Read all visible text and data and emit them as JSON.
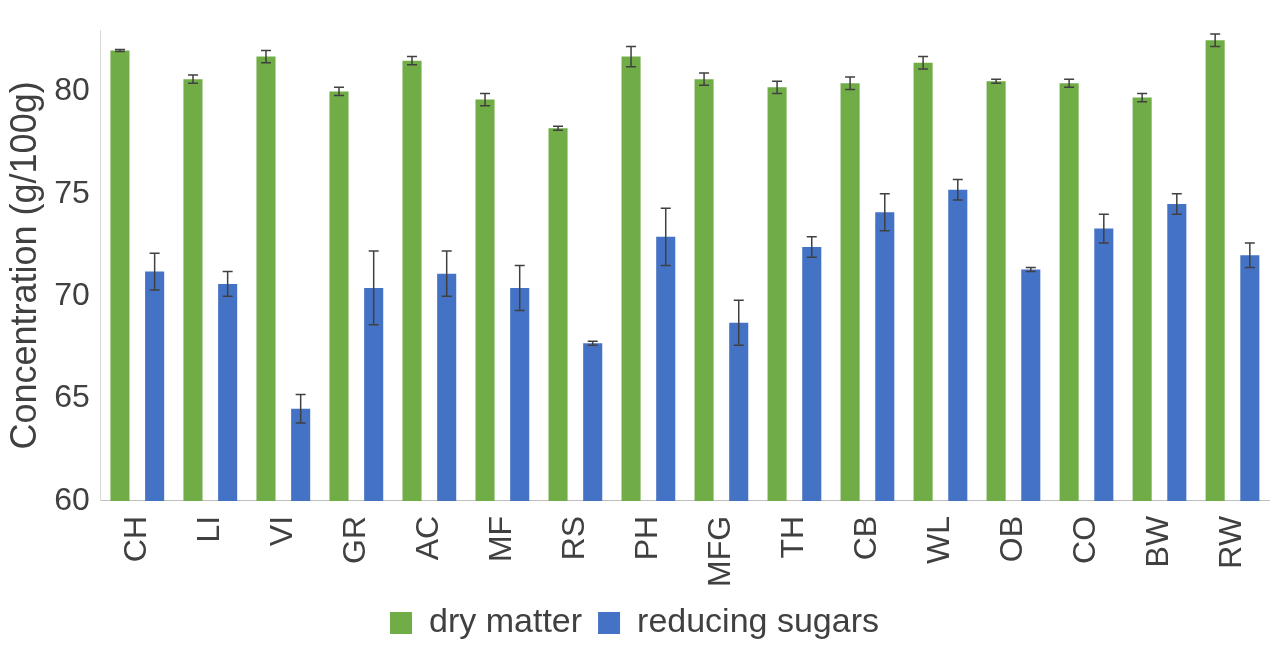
{
  "chart_data": {
    "type": "bar",
    "ylabel": "Concentration (g/100g)",
    "categories": [
      "CH",
      "LI",
      "VI",
      "GR",
      "AC",
      "MF",
      "RS",
      "PH",
      "MFG",
      "TH",
      "CB",
      "WL",
      "OB",
      "CO",
      "BW",
      "RW"
    ],
    "series": [
      {
        "name": "dry matter",
        "color": "#70ad47",
        "values": [
          82.0,
          80.6,
          81.7,
          80.0,
          81.5,
          79.6,
          78.2,
          81.7,
          80.6,
          80.2,
          80.4,
          81.4,
          80.5,
          80.4,
          79.7,
          82.5
        ],
        "errors": [
          0.05,
          0.2,
          0.3,
          0.2,
          0.2,
          0.3,
          0.1,
          0.5,
          0.3,
          0.3,
          0.3,
          0.3,
          0.1,
          0.2,
          0.2,
          0.3
        ]
      },
      {
        "name": "reducing sugars",
        "color": "#4472c4",
        "values": [
          71.2,
          70.6,
          64.5,
          70.4,
          71.1,
          70.4,
          67.7,
          72.9,
          68.7,
          72.4,
          74.1,
          75.2,
          71.3,
          73.3,
          74.5,
          72.0
        ],
        "errors": [
          0.9,
          0.6,
          0.7,
          1.8,
          1.1,
          1.1,
          0.1,
          1.4,
          1.1,
          0.5,
          0.9,
          0.5,
          0.1,
          0.7,
          0.5,
          0.6
        ]
      }
    ],
    "ylim": [
      60,
      83
    ],
    "yticks": [
      60,
      65,
      70,
      75,
      80
    ],
    "grid": false,
    "legend": "bottom"
  }
}
